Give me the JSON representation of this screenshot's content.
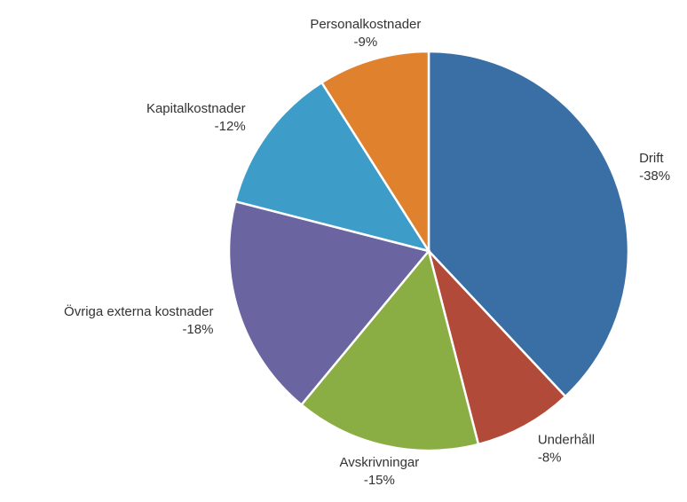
{
  "chart_data": {
    "type": "pie",
    "categories": [
      "Drift",
      "Underhåll",
      "Avskrivningar",
      "Övriga externa kostnader",
      "Kapitalkostnader",
      "Personalkostnader"
    ],
    "values": [
      -38,
      -8,
      -15,
      -18,
      -12,
      -9
    ],
    "value_labels": [
      "-38%",
      "-8%",
      "-15%",
      "-18%",
      "-12%",
      "-9%"
    ],
    "colors": [
      "#3a6fa6",
      "#b24a3a",
      "#8aae44",
      "#6a64a0",
      "#3e9cc8",
      "#e0812e"
    ]
  }
}
